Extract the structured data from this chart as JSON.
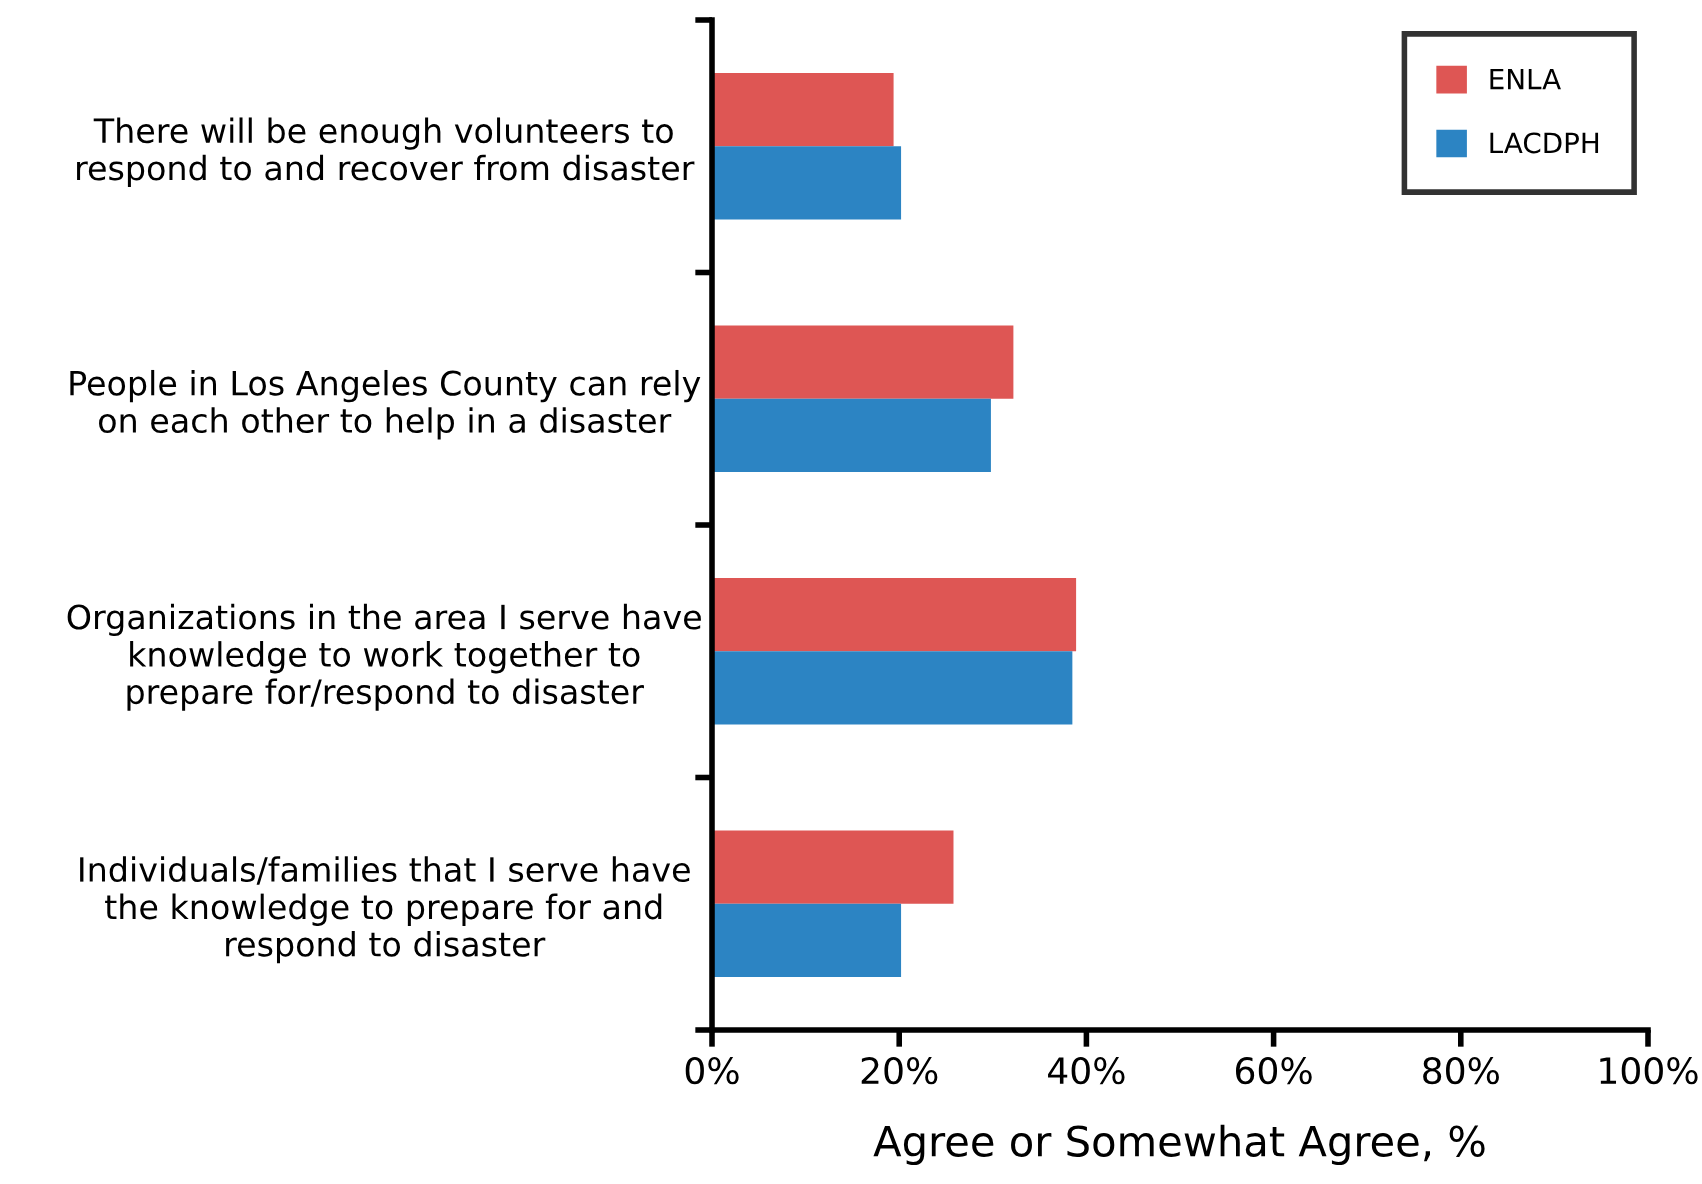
{
  "chart_data": {
    "type": "bar",
    "orientation": "horizontal",
    "xlabel": "Agree or Somewhat Agree, %",
    "categories": [
      "There will be enough volunteers to respond to and recover from disaster",
      "People in Los Angeles County can rely on each other to help in a disaster",
      "Organizations in the area I serve have knowledge to work together to prepare for/respond to disaster",
      "Individuals/families that I serve have the knowledge to prepare for and respond to disaster"
    ],
    "series": [
      {
        "name": "ENLA",
        "color": "#de5654",
        "values": [
          19.4,
          32.2,
          38.9,
          25.8
        ]
      },
      {
        "name": "LACDPH",
        "color": "#2c84c3",
        "values": [
          20.2,
          29.8,
          38.5,
          20.2
        ]
      }
    ],
    "xlim": [
      0,
      100
    ],
    "xticks": [
      {
        "value": 0,
        "label": "0%"
      },
      {
        "value": 20,
        "label": "20%"
      },
      {
        "value": 40,
        "label": "40%"
      },
      {
        "value": 60,
        "label": "60%"
      },
      {
        "value": 80,
        "label": "80%"
      },
      {
        "value": 100,
        "label": "100%"
      }
    ],
    "grid": false,
    "legend": "top right"
  }
}
